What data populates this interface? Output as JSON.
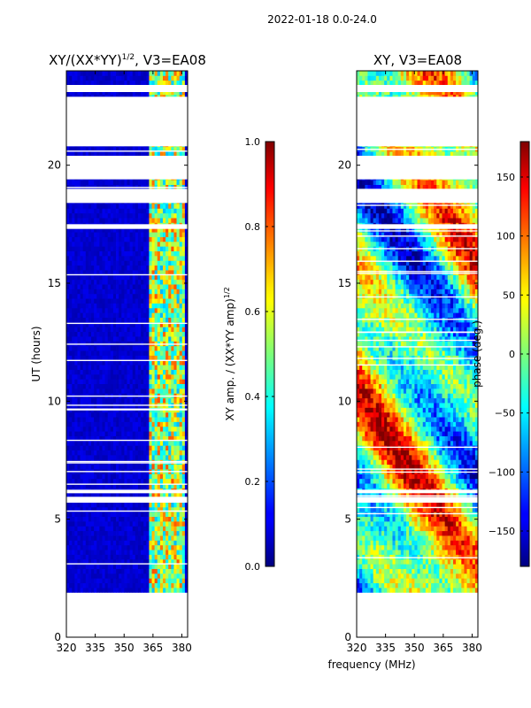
{
  "suptitle": "2022-01-18 0.0-24.0",
  "shared_xlabel": "frequency (MHz)",
  "chart_data": [
    {
      "type": "heatmap",
      "title_prefix": "XY/(XX*YY)",
      "title_exp": "1/2",
      "title_suffix": ", V3=EA08",
      "ylabel": "UT (hours)",
      "xlim": [
        320,
        383
      ],
      "ylim": [
        0,
        24
      ],
      "xticks": [
        320,
        335,
        350,
        365,
        380
      ],
      "yticks": [
        0,
        5,
        10,
        15,
        20
      ],
      "data_time_range": [
        1.9,
        24
      ],
      "data_gaps": [
        [
          5.7,
          5.95
        ],
        [
          6.1,
          6.25
        ],
        [
          17.3,
          17.5
        ],
        [
          18.4,
          19.0
        ],
        [
          19.4,
          20.4
        ],
        [
          20.8,
          22.9
        ],
        [
          23.1,
          23.4
        ]
      ],
      "colorbar": {
        "label_prefix": "XY amp. / (XX*YY amp)",
        "label_exp": "1/2",
        "range": [
          0.0,
          1.0
        ],
        "ticks": [
          "0.0",
          "0.2",
          "0.4",
          "0.6",
          "0.8",
          "1.0"
        ],
        "colormap": "jet"
      }
    },
    {
      "type": "heatmap",
      "title": "XY, V3=EA08",
      "xlim": [
        320,
        383
      ],
      "ylim": [
        0,
        24
      ],
      "xticks": [
        320,
        335,
        350,
        365,
        380
      ],
      "yticks": [
        0,
        5,
        10,
        15,
        20
      ],
      "data_time_range": [
        1.9,
        24
      ],
      "data_gaps": [
        [
          5.7,
          5.95
        ],
        [
          6.1,
          6.25
        ],
        [
          17.3,
          17.5
        ],
        [
          18.4,
          19.0
        ],
        [
          19.4,
          20.4
        ],
        [
          20.8,
          22.9
        ],
        [
          23.1,
          23.4
        ]
      ],
      "colorbar": {
        "label": "phase (deg.)",
        "range": [
          -180,
          180
        ],
        "ticks": [
          "−150",
          "−100",
          "−50",
          "0",
          "50",
          "100",
          "150"
        ],
        "colormap": "jet"
      }
    }
  ]
}
